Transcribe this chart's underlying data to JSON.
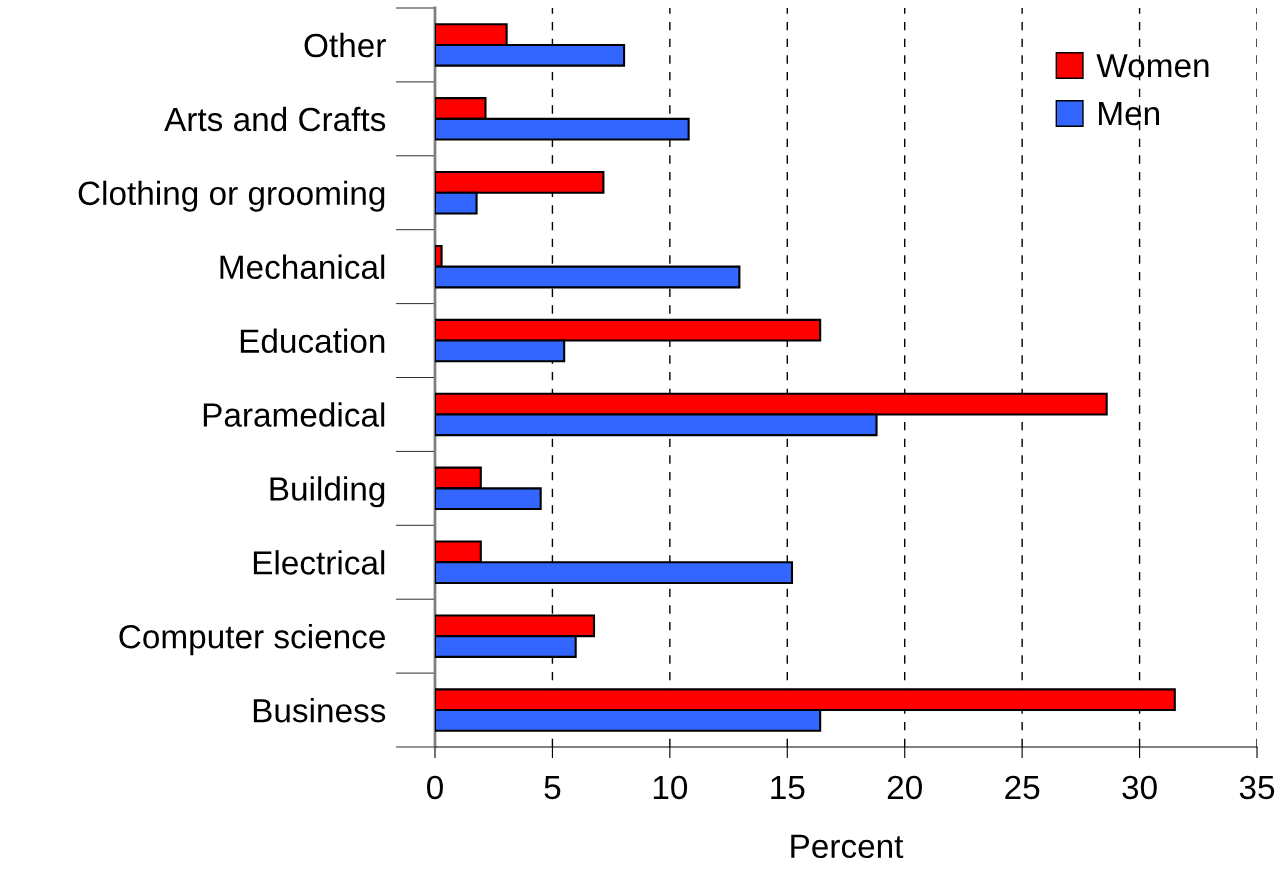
{
  "chart_data": {
    "type": "bar",
    "orientation": "horizontal",
    "xlabel": "Percent",
    "categories": [
      "Other",
      "Arts and Crafts",
      "Clothing or grooming",
      "Mechanical",
      "Education",
      "Paramedical",
      "Building",
      "Electrical",
      "Computer science",
      "Business"
    ],
    "series": [
      {
        "name": "Women",
        "color": "#ff0000",
        "values": [
          3.05,
          2.15,
          7.17,
          0.28,
          16.4,
          28.6,
          1.95,
          1.95,
          6.77,
          31.5
        ]
      },
      {
        "name": "Men",
        "color": "#3366ff",
        "values": [
          8.05,
          10.8,
          1.77,
          12.96,
          5.5,
          18.8,
          4.5,
          15.2,
          5.99,
          16.4
        ]
      }
    ],
    "xlim": [
      0,
      35
    ],
    "xticks": [
      0,
      5,
      10,
      15,
      20,
      25,
      30,
      35
    ],
    "grid": "x",
    "legend": "top right"
  }
}
